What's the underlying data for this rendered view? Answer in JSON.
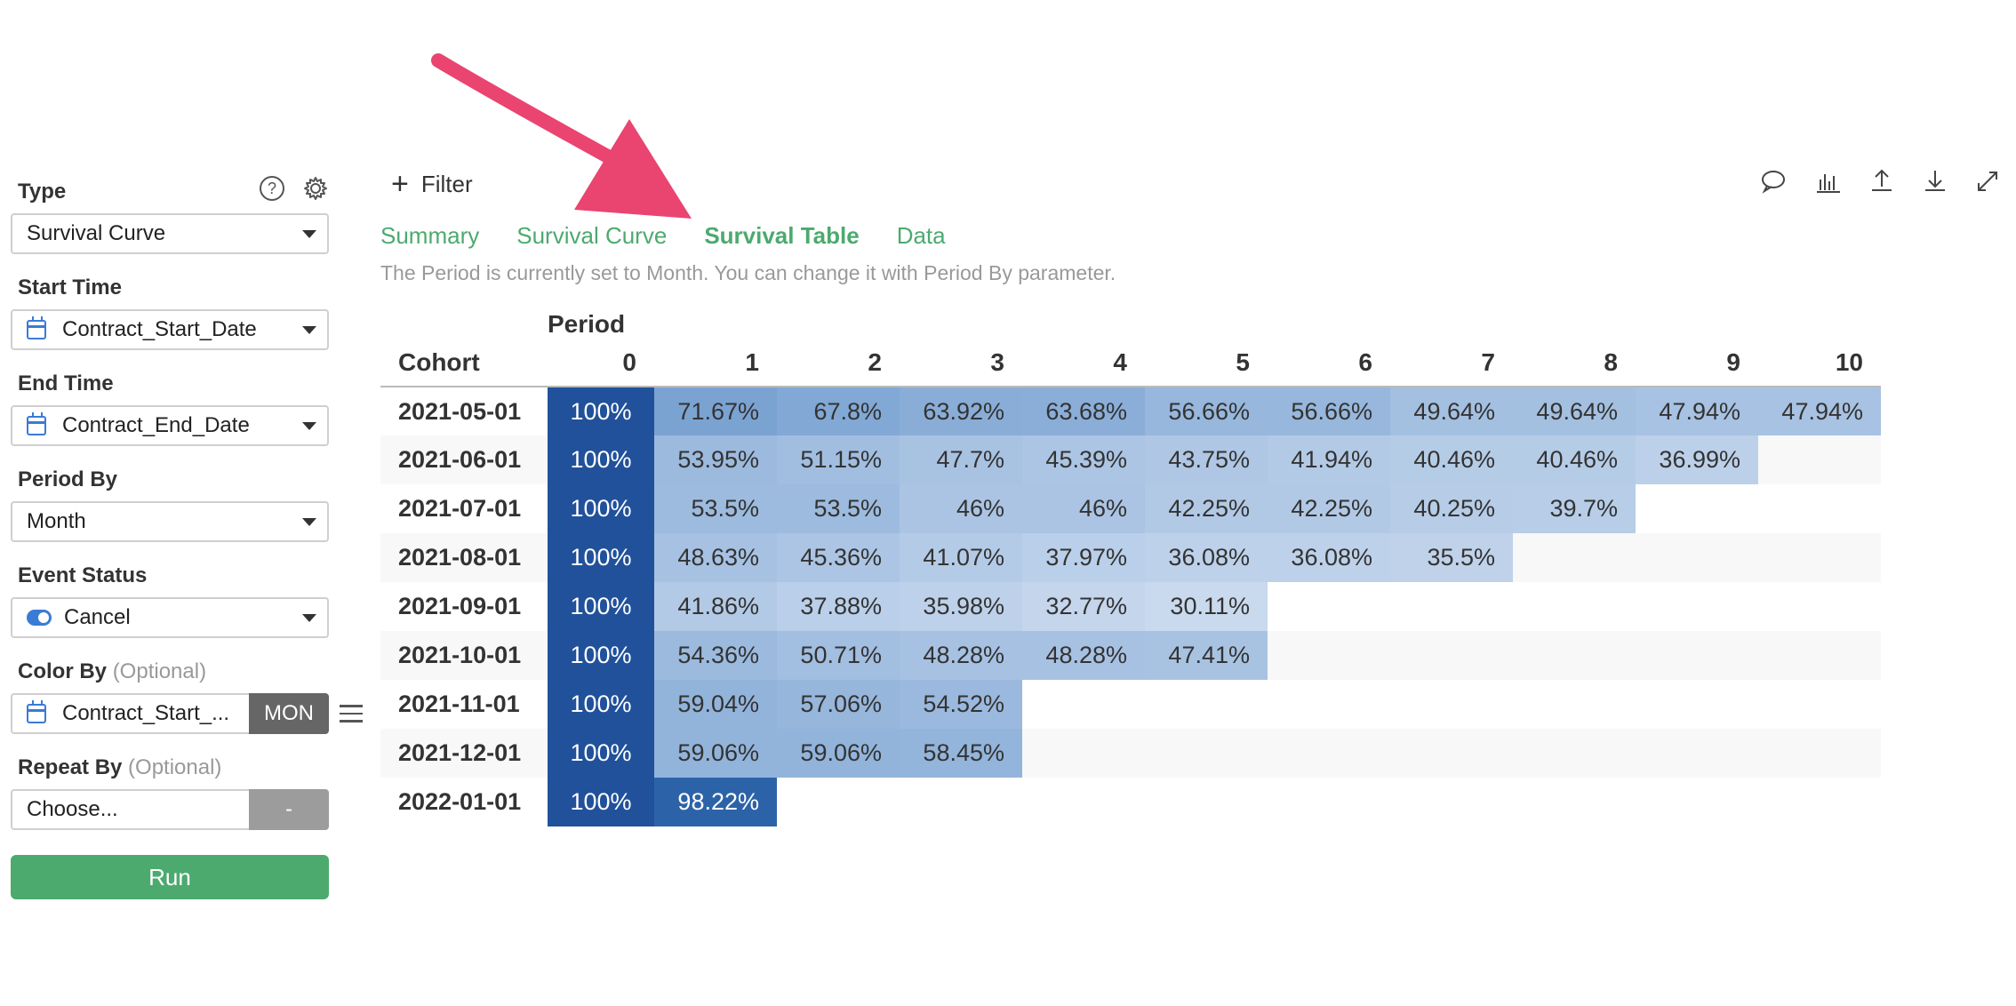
{
  "sidebar": {
    "type_label": "Type",
    "type_value": "Survival Curve",
    "start_label": "Start Time",
    "start_value": "Contract_Start_Date",
    "end_label": "End Time",
    "end_value": "Contract_End_Date",
    "period_label": "Period By",
    "period_value": "Month",
    "event_label": "Event Status",
    "event_value": "Cancel",
    "color_label": "Color By",
    "color_optional": "(Optional)",
    "color_value": "Contract_Start_...",
    "color_unit": "MON",
    "repeat_label": "Repeat By",
    "repeat_optional": "(Optional)",
    "repeat_value": "Choose...",
    "repeat_unit": "-",
    "run_label": "Run",
    "help_glyph": "?"
  },
  "main": {
    "filter_label": "Filter",
    "tabs": [
      {
        "label": "Summary",
        "active": false
      },
      {
        "label": "Survival Curve",
        "active": false
      },
      {
        "label": "Survival Table",
        "active": true
      },
      {
        "label": "Data",
        "active": false
      }
    ],
    "note": "The Period is currently set to Month. You can change it with Period By parameter.",
    "toolbar_icons": [
      "comment-icon",
      "chart-icon",
      "upload-icon",
      "download-icon",
      "expand-icon"
    ]
  },
  "table": {
    "period_label": "Period",
    "cohort_label": "Cohort",
    "columns": [
      "0",
      "1",
      "2",
      "3",
      "4",
      "5",
      "6",
      "7",
      "8",
      "9",
      "10"
    ],
    "rows": [
      {
        "cohort": "2021-05-01",
        "values": [
          "100%",
          "71.67%",
          "67.8%",
          "63.92%",
          "63.68%",
          "56.66%",
          "56.66%",
          "49.64%",
          "49.64%",
          "47.94%",
          "47.94%"
        ]
      },
      {
        "cohort": "2021-06-01",
        "values": [
          "100%",
          "53.95%",
          "51.15%",
          "47.7%",
          "45.39%",
          "43.75%",
          "41.94%",
          "40.46%",
          "40.46%",
          "36.99%"
        ]
      },
      {
        "cohort": "2021-07-01",
        "values": [
          "100%",
          "53.5%",
          "53.5%",
          "46%",
          "46%",
          "42.25%",
          "42.25%",
          "40.25%",
          "39.7%"
        ]
      },
      {
        "cohort": "2021-08-01",
        "values": [
          "100%",
          "48.63%",
          "45.36%",
          "41.07%",
          "37.97%",
          "36.08%",
          "36.08%",
          "35.5%"
        ]
      },
      {
        "cohort": "2021-09-01",
        "values": [
          "100%",
          "41.86%",
          "37.88%",
          "35.98%",
          "32.77%",
          "30.11%"
        ]
      },
      {
        "cohort": "2021-10-01",
        "values": [
          "100%",
          "54.36%",
          "50.71%",
          "48.28%",
          "48.28%",
          "47.41%"
        ]
      },
      {
        "cohort": "2021-11-01",
        "values": [
          "100%",
          "59.04%",
          "57.06%",
          "54.52%"
        ]
      },
      {
        "cohort": "2021-12-01",
        "values": [
          "100%",
          "59.06%",
          "59.06%",
          "58.45%"
        ]
      },
      {
        "cohort": "2022-01-01",
        "values": [
          "100%",
          "98.22%"
        ]
      }
    ],
    "colors": {
      "full": "#21519b",
      "high": "#2c63a8"
    }
  },
  "annotation": {
    "arrow_color": "#ea4470"
  }
}
